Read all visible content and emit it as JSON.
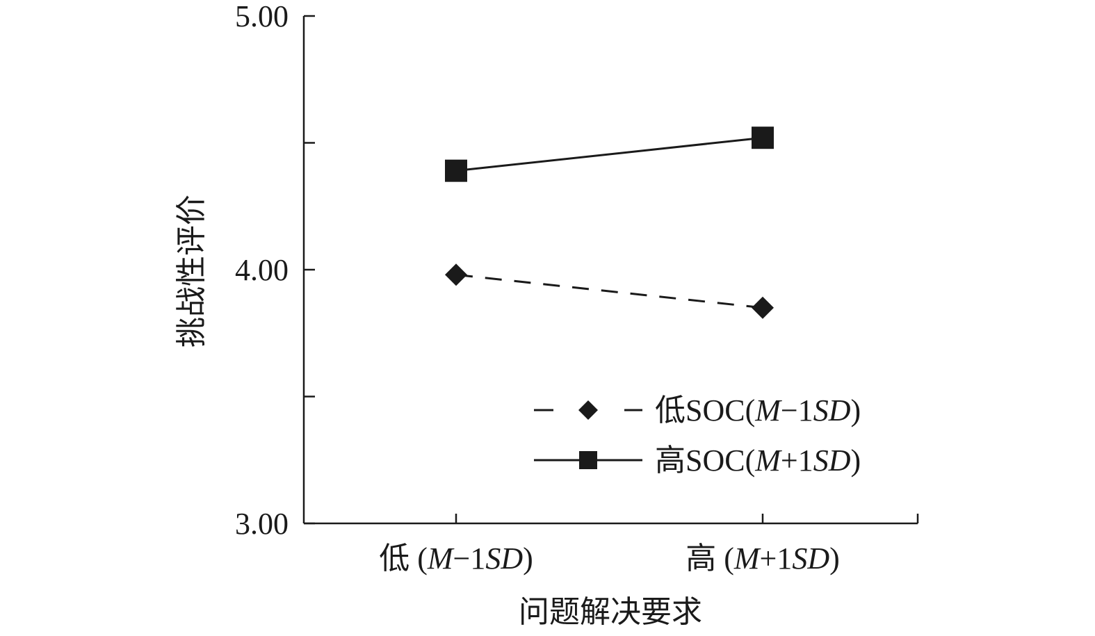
{
  "chart_data": {
    "type": "line",
    "xlabel": "问题解决要求",
    "ylabel": "挑战性评价",
    "categories": [
      "低 (M−1SD)",
      "高 (M+1SD)"
    ],
    "category_parts": [
      {
        "prefix": "低 (",
        "m": "M",
        "op": "−1",
        "sd": "SD",
        "suffix": ")"
      },
      {
        "prefix": "高 (",
        "m": "M",
        "op": "+1",
        "sd": "SD",
        "suffix": ")"
      }
    ],
    "ylim": [
      3.0,
      5.0
    ],
    "yticks": [
      3.0,
      3.5,
      4.0,
      4.5,
      5.0
    ],
    "ytick_labels": [
      "3.00",
      "",
      "4.00",
      "",
      "5.00"
    ],
    "grid": false,
    "legend_position": "bottom-right",
    "series": [
      {
        "name": "低SOC(M−1SD)",
        "name_parts": {
          "prefix": "低SOC(",
          "m": "M",
          "op": "−1",
          "sd": "SD",
          "suffix": ")"
        },
        "values": [
          3.98,
          3.85
        ],
        "line_style": "dashed",
        "marker": "diamond",
        "color": "#1a1a1a"
      },
      {
        "name": "高SOC(M+1SD)",
        "name_parts": {
          "prefix": "高SOC(",
          "m": "M",
          "op": "+1",
          "sd": "SD",
          "suffix": ")"
        },
        "values": [
          4.39,
          4.52
        ],
        "line_style": "solid",
        "marker": "square",
        "color": "#1a1a1a"
      }
    ]
  }
}
